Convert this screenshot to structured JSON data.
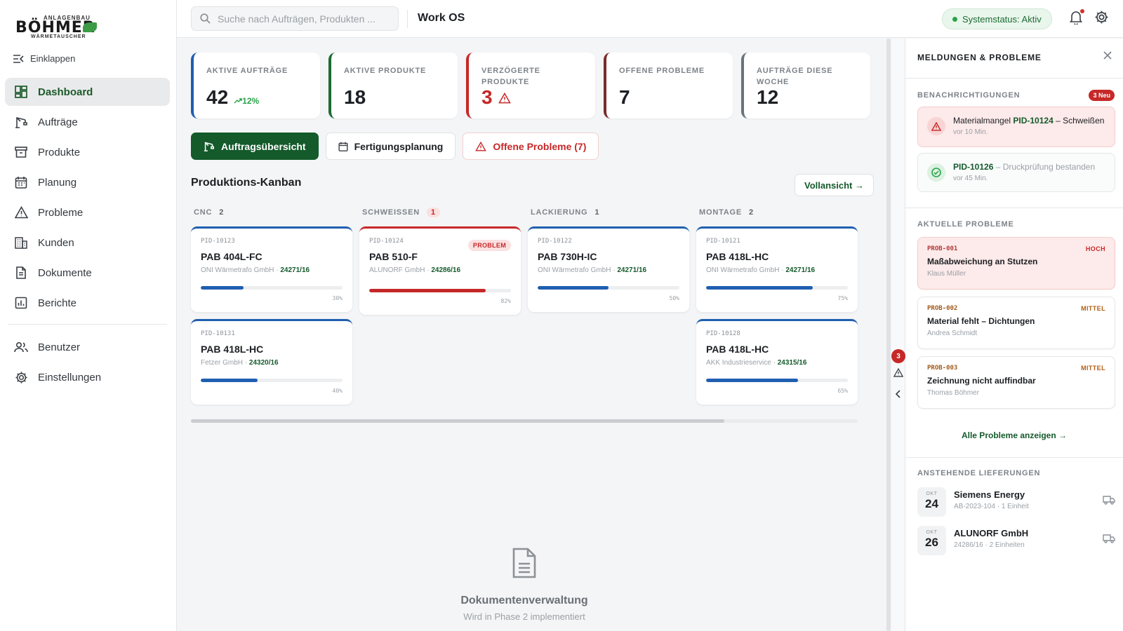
{
  "sidebar": {
    "logo": {
      "top": "ANLAGENBAU",
      "main": "BÖHMER",
      "bottom": "WÄRMETAUSCHER"
    },
    "collapse_label": "Einklappen",
    "items": [
      {
        "label": "Dashboard",
        "icon": "dashboard-icon",
        "active": true
      },
      {
        "label": "Aufträge",
        "icon": "crane-icon"
      },
      {
        "label": "Produkte",
        "icon": "archive-icon"
      },
      {
        "label": "Planung",
        "icon": "calendar-icon"
      },
      {
        "label": "Probleme",
        "icon": "warning-icon"
      },
      {
        "label": "Kunden",
        "icon": "building-icon"
      },
      {
        "label": "Dokumente",
        "icon": "document-icon"
      },
      {
        "label": "Berichte",
        "icon": "report-icon"
      }
    ],
    "bottom_items": [
      {
        "label": "Benutzer",
        "icon": "users-icon"
      },
      {
        "label": "Einstellungen",
        "icon": "gear-icon"
      }
    ]
  },
  "topbar": {
    "search_placeholder": "Suche nach Aufträgen, Produkten ...",
    "app_title": "Work OS",
    "system_status": "Systemstatus: Aktiv"
  },
  "kpis": [
    {
      "label": "AKTIVE AUFTRÄGE",
      "value": "42",
      "trend": "12%"
    },
    {
      "label": "AKTIVE PRODUKTE",
      "value": "18"
    },
    {
      "label": "VERZÖGERTE PRODUKTE",
      "value": "3"
    },
    {
      "label": "OFFENE PROBLEME",
      "value": "7"
    },
    {
      "label": "AUFTRÄGE DIESE WOCHE",
      "value": "12"
    }
  ],
  "tabs": [
    {
      "label": "Auftragsübersicht"
    },
    {
      "label": "Fertigungsplanung"
    },
    {
      "label": "Offene Probleme (7)"
    }
  ],
  "kanban": {
    "title": "Produktions-Kanban",
    "fullview_label": "Vollansicht →",
    "columns": [
      {
        "name": "CNC",
        "count": "2",
        "cards": [
          {
            "pid": "PID-10123",
            "name": "PAB 404L-FC",
            "customer": "ONI Wärmetrafo GmbH",
            "order": "24271/16",
            "progress": 30,
            "pct": "30%"
          },
          {
            "pid": "PID-10131",
            "name": "PAB 418L-HC",
            "customer": "Fetzer GmbH",
            "order": "24320/16",
            "progress": 40,
            "pct": "40%"
          }
        ]
      },
      {
        "name": "SCHWEISSEN",
        "count": "1",
        "cards": [
          {
            "pid": "PID-10124",
            "name": "PAB 510-F",
            "customer": "ALUNORF GmbH",
            "order": "24286/16",
            "progress": 82,
            "pct": "82%",
            "badge": "PROBLEM"
          }
        ]
      },
      {
        "name": "LACKIERUNG",
        "count": "1",
        "cards": [
          {
            "pid": "PID-10122",
            "name": "PAB 730H-IC",
            "customer": "ONI Wärmetrafo GmbH",
            "order": "24271/16",
            "progress": 50,
            "pct": "50%"
          }
        ]
      },
      {
        "name": "MONTAGE",
        "count": "2",
        "cards": [
          {
            "pid": "PID-10121",
            "name": "PAB 418L-HC",
            "customer": "ONI Wärmetrafo GmbH",
            "order": "24271/16",
            "progress": 75,
            "pct": "75%"
          },
          {
            "pid": "PID-10128",
            "name": "PAB 418L-HC",
            "customer": "AKK Industrieservice",
            "order": "24315/16",
            "progress": 65,
            "pct": "65%"
          }
        ]
      }
    ]
  },
  "documents_placeholder": {
    "title": "Dokumentenverwaltung",
    "subtitle": "Wird in Phase 2 implementiert"
  },
  "rail": {
    "badge": "3"
  },
  "panel": {
    "title": "MELDUNGEN & PROBLEME",
    "notifications_title": "BENACHRICHTIGUNGEN",
    "new_badge": "3 Neu",
    "notifications": [
      {
        "prefix": "Materialmangel ",
        "pid": "PID-10124",
        "rest": " – Schweißen",
        "time": "vor 10 Min."
      },
      {
        "prefix": "",
        "pid": "PID-10126",
        "rest": " – Druckprüfung bestanden",
        "time": "vor 45 Min."
      }
    ],
    "problems_title": "AKTUELLE PROBLEME",
    "problems": [
      {
        "id": "PROB-001",
        "severity": "HOCH",
        "title": "Maßabweichung an Stutzen",
        "person": "Klaus Müller"
      },
      {
        "id": "PROB-002",
        "severity": "MITTEL",
        "title": "Material fehlt – Dichtungen",
        "person": "Andrea Schmidt"
      },
      {
        "id": "PROB-003",
        "severity": "MITTEL",
        "title": "Zeichnung nicht auffindbar",
        "person": "Thomas Böhmer"
      }
    ],
    "all_problems_link": "Alle Probleme anzeigen →",
    "deliveries_title": "ANSTEHENDE LIEFERUNGEN",
    "deliveries": [
      {
        "month": "OKT",
        "day": "24",
        "name": "Siemens Energy",
        "meta": "AB-2023-104 · 1 Einheit"
      },
      {
        "month": "OKT",
        "day": "26",
        "name": "ALUNORF GmbH",
        "meta": "24286/16 · 2 Einheiten"
      }
    ]
  },
  "colors": {
    "brand_green": "#145a2b",
    "accent_blue": "#1f5fb0",
    "danger_red": "#c62828"
  }
}
